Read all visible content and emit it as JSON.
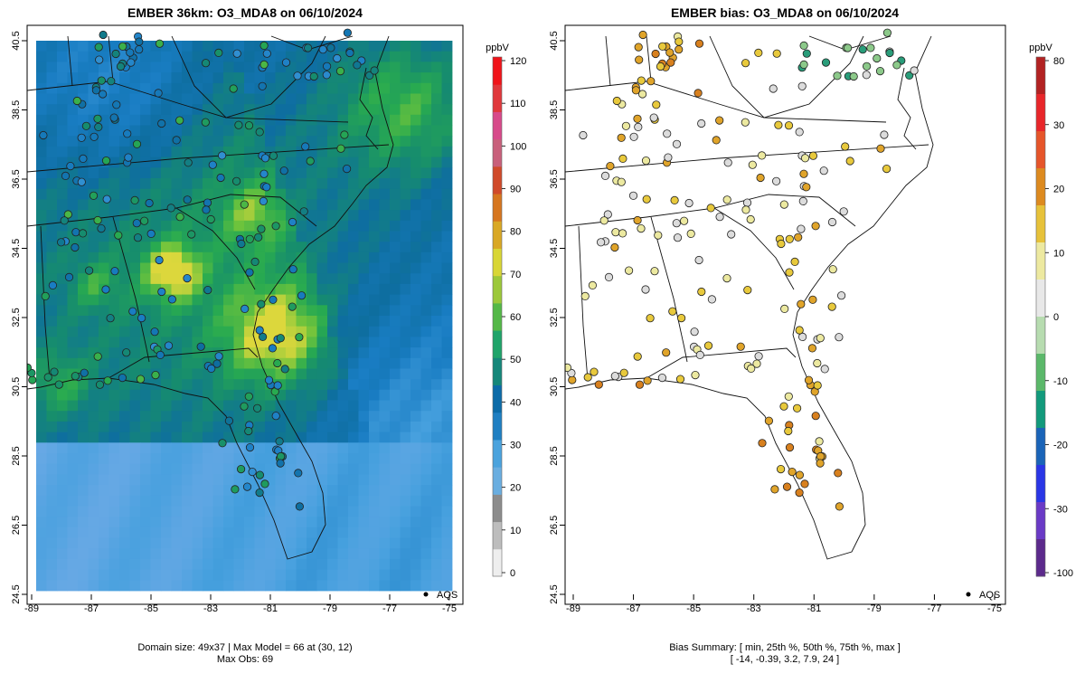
{
  "left_panel": {
    "title": "EMBER 36km: O3_MDA8 on 06/10/2024",
    "legend_unit": "ppbV",
    "legend_ticks": [
      "0",
      "10",
      "20",
      "30",
      "40",
      "50",
      "60",
      "70",
      "80",
      "90",
      "100",
      "110",
      "120"
    ],
    "legend_colors": [
      "#eeeeee",
      "#bdbdbd",
      "#8c8c8c",
      "#6aaee0",
      "#4ba3dd",
      "#1f7fc2",
      "#0c6ba8",
      "#15877a",
      "#1fa46a",
      "#54b848",
      "#9cc83a",
      "#d8d636",
      "#d9a825",
      "#d6761f",
      "#d04a2a",
      "#c8607b",
      "#d74a8a",
      "#e0383c",
      "#f0141a"
    ],
    "x_ticks": [
      "-89",
      "-87",
      "-85",
      "-83",
      "-81",
      "-79",
      "-77",
      "-75"
    ],
    "y_ticks": [
      "24.5",
      "26.5",
      "28.5",
      "30.5",
      "32.5",
      "34.5",
      "36.5",
      "38.5",
      "40.5"
    ],
    "map_label": "AQS",
    "footer_line1": "Domain size: 49x37 | Max Model = 66 at (30, 12)",
    "footer_line2": "Max Obs: 69"
  },
  "right_panel": {
    "title": "EMBER bias: O3_MDA8 on 06/10/2024",
    "legend_unit": "ppbV",
    "legend_ticks": [
      "80",
      "30",
      "20",
      "10",
      "0",
      "-10",
      "-20",
      "-30",
      "-100"
    ],
    "legend_colors": [
      "#b22222",
      "#e8262a",
      "#e6552a",
      "#dd8a1f",
      "#e7c23a",
      "#ede9a0",
      "#e8e8e8",
      "#b7dcb0",
      "#5bb86a",
      "#129a7c",
      "#1a64b8",
      "#2a36e6",
      "#6a3ac6",
      "#5c2a8c"
    ],
    "x_ticks": [
      "-89",
      "-87",
      "-85",
      "-83",
      "-81",
      "-79",
      "-77",
      "-75"
    ],
    "y_ticks": [
      "24.5",
      "26.5",
      "28.5",
      "30.5",
      "32.5",
      "34.5",
      "36.5",
      "38.5",
      "40.5"
    ],
    "map_label": "AQS",
    "footer_line1": "Bias Summary: [ min, 25th %, 50th %, 75th %, max ]",
    "footer_line2": "[ -14,   -0.39,   3.2,   7.9,   24 ]"
  }
}
